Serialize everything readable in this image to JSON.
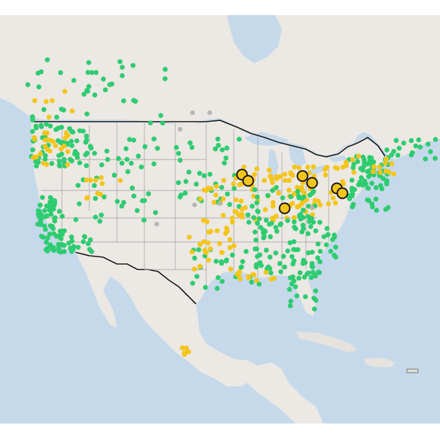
{
  "map": {
    "colors": {
      "ocean": "#c5d9ea",
      "land": "#ece8e3",
      "land_shade": "#e2ded8",
      "lake": "#c5d9ea",
      "country_border": "#111111",
      "state_border": "#9a9a9a",
      "caribbean_land": "#e6e2dd",
      "marker_green": "#2ecc71",
      "marker_yellow": "#f5c518",
      "marker_gray": "#b5b5b5",
      "highlight_fill": "#f5c518",
      "highlight_stroke": "#111111"
    },
    "legend": null
  }
}
